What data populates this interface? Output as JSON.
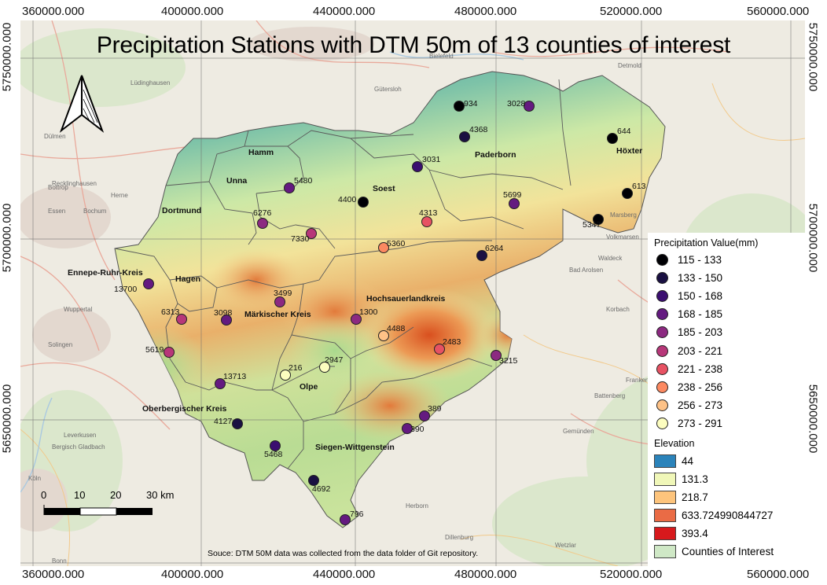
{
  "title": "Precipitation Stations with DTM 50m of 13 counties of interest",
  "source_note": "Souce: DTM 50M data was collected from the data folder of Git repository.",
  "grid": {
    "x_labels": [
      "360000.000",
      "400000.000",
      "440000.000",
      "480000.000",
      "520000.000",
      "560000.000"
    ],
    "y_labels": [
      "5750000.000",
      "5700000.000",
      "5650000.000"
    ]
  },
  "scale_bar": {
    "labels": [
      "0",
      "10",
      "20",
      "30 km"
    ]
  },
  "north_arrow": {
    "icon": "north-arrow-icon"
  },
  "counties": [
    "Hamm",
    "Unna",
    "Soest",
    "Paderborn",
    "Höxter",
    "Dortmund",
    "Ennepe-Ruhr-Kreis",
    "Hagen",
    "Hochsauerlandkreis",
    "Märkischer Kreis",
    "Olpe",
    "Oberbergischer Kreis",
    "Siegen-Wittgenstein"
  ],
  "basemap_places": [
    "Gütersloh",
    "Recklinghausen",
    "Bochum",
    "Essen",
    "Herne",
    "Bottrop",
    "Wuppertal",
    "Solingen",
    "Leverkusen",
    "Bergisch Gladbach",
    "Köln",
    "Bonn",
    "Lüdinghausen",
    "Dülmen",
    "Marsberg",
    "Korbach",
    "Bad Arolsen",
    "Frankenberg (Eder)",
    "Battenberg",
    "Gemünden",
    "Herborn",
    "Dillenburg",
    "Wetzlar",
    "Bielefeld",
    "Detmold",
    "Volkmarsen",
    "Waldeck"
  ],
  "stations": [
    {
      "id": "934",
      "value_class": 0
    },
    {
      "id": "3028",
      "value_class": 3
    },
    {
      "id": "4368",
      "value_class": 1
    },
    {
      "id": "644",
      "value_class": 0
    },
    {
      "id": "3031",
      "value_class": 2
    },
    {
      "id": "5480",
      "value_class": 3
    },
    {
      "id": "4400",
      "value_class": 0
    },
    {
      "id": "613",
      "value_class": 0
    },
    {
      "id": "5699",
      "value_class": 3
    },
    {
      "id": "6276",
      "value_class": 4
    },
    {
      "id": "4313",
      "value_class": 6
    },
    {
      "id": "5347",
      "value_class": 0
    },
    {
      "id": "7330",
      "value_class": 5
    },
    {
      "id": "5360",
      "value_class": 7
    },
    {
      "id": "6264",
      "value_class": 1
    },
    {
      "id": "13700",
      "value_class": 3
    },
    {
      "id": "3499",
      "value_class": 4
    },
    {
      "id": "6313",
      "value_class": 5
    },
    {
      "id": "3098",
      "value_class": 3
    },
    {
      "id": "1300",
      "value_class": 4
    },
    {
      "id": "4488",
      "value_class": 8
    },
    {
      "id": "2483",
      "value_class": 6
    },
    {
      "id": "5619",
      "value_class": 5
    },
    {
      "id": "3215",
      "value_class": 4
    },
    {
      "id": "216",
      "value_class": 9
    },
    {
      "id": "2947",
      "value_class": 9
    },
    {
      "id": "13713",
      "value_class": 3
    },
    {
      "id": "4127",
      "value_class": 1
    },
    {
      "id": "389",
      "value_class": 3
    },
    {
      "id": "390",
      "value_class": 3
    },
    {
      "id": "5468",
      "value_class": 2
    },
    {
      "id": "4692",
      "value_class": 1
    },
    {
      "id": "796",
      "value_class": 3
    }
  ],
  "legend": {
    "precip_heading": "Precipitation Value(mm)",
    "precip_classes": [
      {
        "label": "115 - 133",
        "color": "#000004"
      },
      {
        "label": "133 - 150",
        "color": "#1a1042"
      },
      {
        "label": "150 - 168",
        "color": "#3b0f70"
      },
      {
        "label": "168 - 185",
        "color": "#641a80"
      },
      {
        "label": "185 - 203",
        "color": "#8c2981"
      },
      {
        "label": "203 - 221",
        "color": "#b73779"
      },
      {
        "label": "221 - 238",
        "color": "#e75263"
      },
      {
        "label": "238 - 256",
        "color": "#fc8961"
      },
      {
        "label": "256 - 273",
        "color": "#fec287"
      },
      {
        "label": "273 - 291",
        "color": "#fcfdbf"
      }
    ],
    "elevation_heading": "Elevation",
    "elevation_classes": [
      {
        "label": "44",
        "color": "#2b83ba"
      },
      {
        "label": "131.3",
        "color": "#f0f7b8"
      },
      {
        "label": "218.7",
        "color": "#fdc47c"
      },
      {
        "label": "633.724990844727",
        "color": "#ea6b45"
      },
      {
        "label": "393.4",
        "color": "#d7191c"
      }
    ],
    "counties_label": "Counties of Interest",
    "counties_color": "#cfe8c6"
  }
}
